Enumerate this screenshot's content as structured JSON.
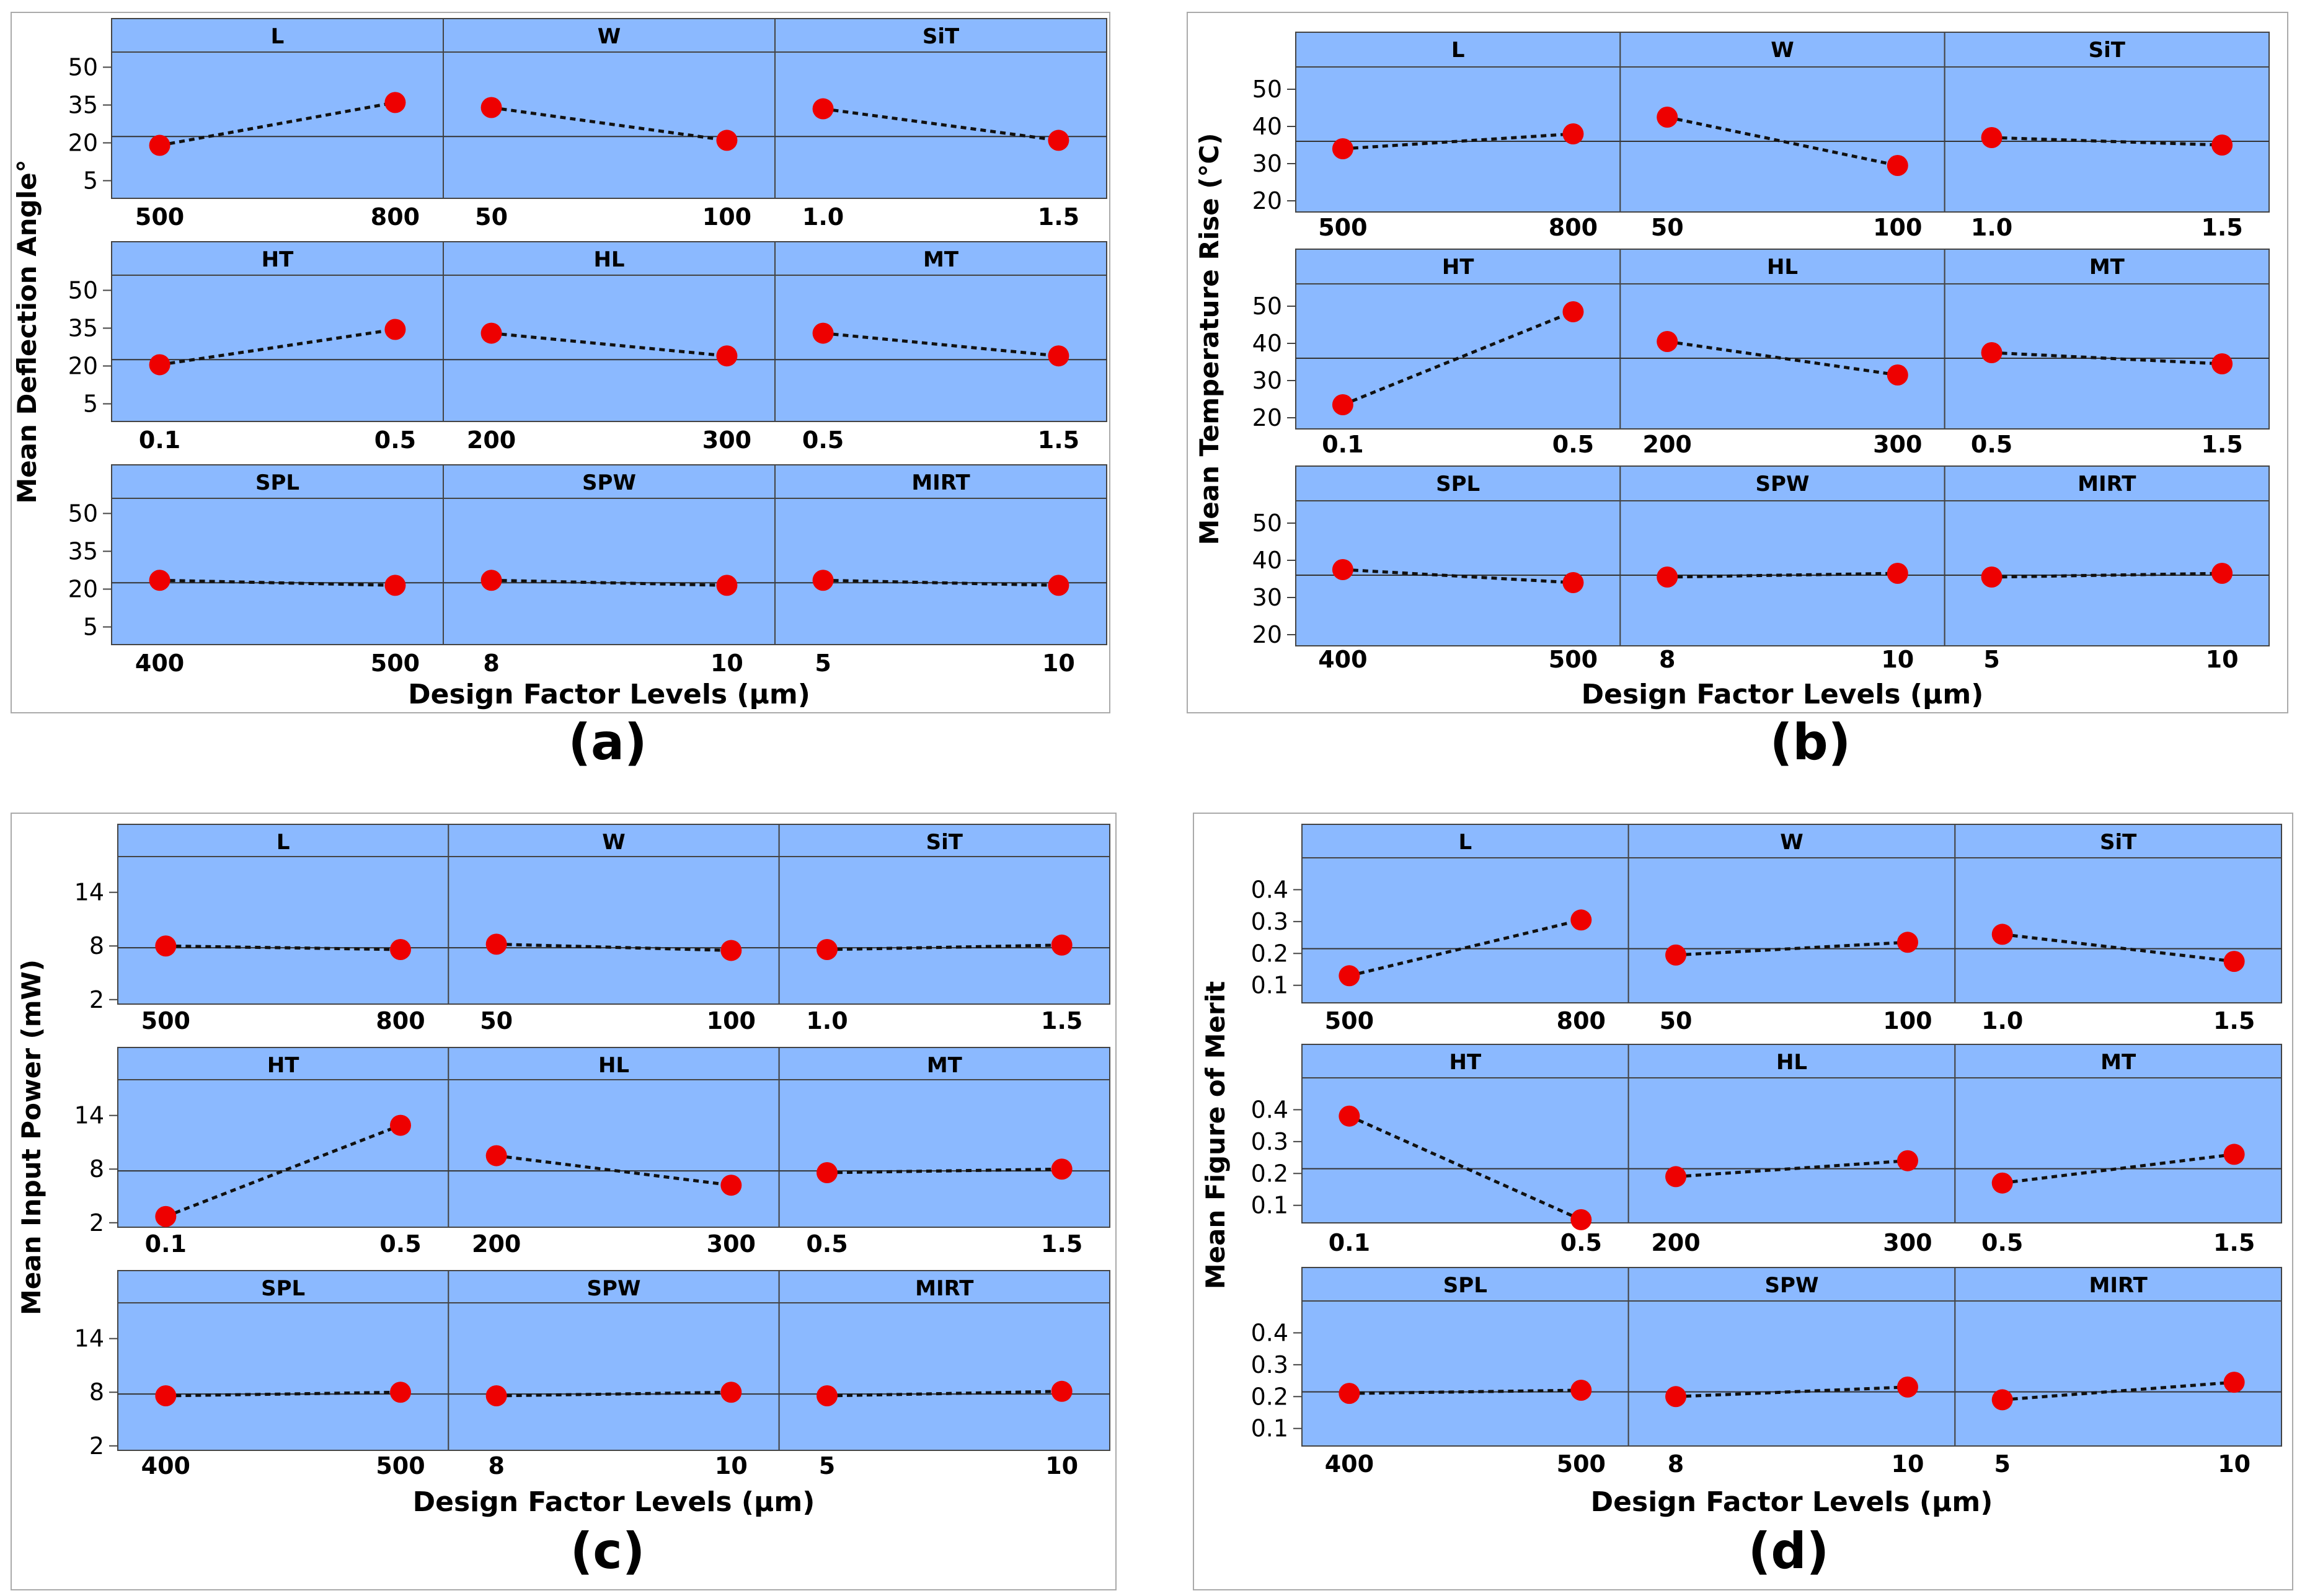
{
  "chart_data": [
    {
      "type": "line",
      "panel_label": "(a)",
      "ylabel": "Mean Deflection Angle°",
      "xlabel": "Design Factor Levels (µm)",
      "yticks": [
        5,
        20,
        35,
        50
      ],
      "ylim": [
        -2,
        56
      ],
      "mean_line": 22.5,
      "rows": [
        [
          {
            "factor": "L",
            "levels": [
              "500",
              "800"
            ],
            "values": [
              19,
              36
            ]
          },
          {
            "factor": "W",
            "levels": [
              "50",
              "100"
            ],
            "values": [
              34,
              21
            ]
          },
          {
            "factor": "SiT",
            "levels": [
              "1.0",
              "1.5"
            ],
            "values": [
              33.5,
              21
            ]
          }
        ],
        [
          {
            "factor": "HT",
            "levels": [
              "0.1",
              "0.5"
            ],
            "values": [
              20.5,
              34.5
            ]
          },
          {
            "factor": "HL",
            "levels": [
              "200",
              "300"
            ],
            "values": [
              33,
              24
            ]
          },
          {
            "factor": "MT",
            "levels": [
              "0.5",
              "1.5"
            ],
            "values": [
              33,
              24
            ]
          }
        ],
        [
          {
            "factor": "SPL",
            "levels": [
              "400",
              "500"
            ],
            "values": [
              23.5,
              21.5
            ]
          },
          {
            "factor": "SPW",
            "levels": [
              "8",
              "10"
            ],
            "values": [
              23.5,
              21.5
            ]
          },
          {
            "factor": "MIRT",
            "levels": [
              "5",
              "10"
            ],
            "values": [
              23.5,
              21.5
            ]
          }
        ]
      ]
    },
    {
      "type": "line",
      "panel_label": "(b)",
      "ylabel": "Mean Temperature Rise (°C)",
      "xlabel": "Design Factor Levels (µm)",
      "yticks": [
        20,
        30,
        40,
        50
      ],
      "ylim": [
        17,
        56
      ],
      "mean_line": 36,
      "rows": [
        [
          {
            "factor": "L",
            "levels": [
              "500",
              "800"
            ],
            "values": [
              34,
              38
            ]
          },
          {
            "factor": "W",
            "levels": [
              "50",
              "100"
            ],
            "values": [
              42.5,
              29.5
            ]
          },
          {
            "factor": "SiT",
            "levels": [
              "1.0",
              "1.5"
            ],
            "values": [
              37,
              35
            ]
          }
        ],
        [
          {
            "factor": "HT",
            "levels": [
              "0.1",
              "0.5"
            ],
            "values": [
              23.5,
              48.5
            ]
          },
          {
            "factor": "HL",
            "levels": [
              "200",
              "300"
            ],
            "values": [
              40.5,
              31.5
            ]
          },
          {
            "factor": "MT",
            "levels": [
              "0.5",
              "1.5"
            ],
            "values": [
              37.5,
              34.5
            ]
          }
        ],
        [
          {
            "factor": "SPL",
            "levels": [
              "400",
              "500"
            ],
            "values": [
              37.5,
              34
            ]
          },
          {
            "factor": "SPW",
            "levels": [
              "8",
              "10"
            ],
            "values": [
              35.5,
              36.5
            ]
          },
          {
            "factor": "MIRT",
            "levels": [
              "5",
              "10"
            ],
            "values": [
              35.5,
              36.5
            ]
          }
        ]
      ]
    },
    {
      "type": "line",
      "panel_label": "(c)",
      "ylabel": "Mean Input Power (mW)",
      "xlabel": "Design Factor Levels (µm)",
      "yticks": [
        2,
        8,
        14
      ],
      "ylim": [
        1.5,
        18
      ],
      "mean_line": 7.8,
      "rows": [
        [
          {
            "factor": "L",
            "levels": [
              "500",
              "800"
            ],
            "values": [
              8,
              7.6
            ]
          },
          {
            "factor": "W",
            "levels": [
              "50",
              "100"
            ],
            "values": [
              8.2,
              7.5
            ]
          },
          {
            "factor": "SiT",
            "levels": [
              "1.0",
              "1.5"
            ],
            "values": [
              7.6,
              8.1
            ]
          }
        ],
        [
          {
            "factor": "HT",
            "levels": [
              "0.1",
              "0.5"
            ],
            "values": [
              2.7,
              12.9
            ]
          },
          {
            "factor": "HL",
            "levels": [
              "200",
              "300"
            ],
            "values": [
              9.5,
              6.2
            ]
          },
          {
            "factor": "MT",
            "levels": [
              "0.5",
              "1.5"
            ],
            "values": [
              7.6,
              8
            ]
          }
        ],
        [
          {
            "factor": "SPL",
            "levels": [
              "400",
              "500"
            ],
            "values": [
              7.6,
              8
            ]
          },
          {
            "factor": "SPW",
            "levels": [
              "8",
              "10"
            ],
            "values": [
              7.6,
              8
            ]
          },
          {
            "factor": "MIRT",
            "levels": [
              "5",
              "10"
            ],
            "values": [
              7.6,
              8.1
            ]
          }
        ]
      ]
    },
    {
      "type": "line",
      "panel_label": "(d)",
      "ylabel": "Mean Figure of Merit",
      "xlabel": "Design Factor Levels (µm)",
      "yticks": [
        0.1,
        0.2,
        0.3,
        0.4
      ],
      "ylim": [
        0.045,
        0.5
      ],
      "mean_line": 0.215,
      "rows": [
        [
          {
            "factor": "L",
            "levels": [
              "500",
              "800"
            ],
            "values": [
              0.13,
              0.305
            ]
          },
          {
            "factor": "W",
            "levels": [
              "50",
              "100"
            ],
            "values": [
              0.195,
              0.235
            ]
          },
          {
            "factor": "SiT",
            "levels": [
              "1.0",
              "1.5"
            ],
            "values": [
              0.26,
              0.175
            ]
          }
        ],
        [
          {
            "factor": "HT",
            "levels": [
              "0.1",
              "0.5"
            ],
            "values": [
              0.38,
              0.055
            ]
          },
          {
            "factor": "HL",
            "levels": [
              "200",
              "300"
            ],
            "values": [
              0.19,
              0.24
            ]
          },
          {
            "factor": "MT",
            "levels": [
              "0.5",
              "1.5"
            ],
            "values": [
              0.17,
              0.26
            ]
          }
        ],
        [
          {
            "factor": "SPL",
            "levels": [
              "400",
              "500"
            ],
            "values": [
              0.21,
              0.22
            ]
          },
          {
            "factor": "SPW",
            "levels": [
              "8",
              "10"
            ],
            "values": [
              0.2,
              0.23
            ]
          },
          {
            "factor": "MIRT",
            "levels": [
              "5",
              "10"
            ],
            "values": [
              0.19,
              0.245
            ]
          }
        ]
      ]
    }
  ],
  "colors": {
    "panel_bg": "#8bb9ff",
    "marker": "#ee0000",
    "line": "#111111",
    "frame": "#444444"
  }
}
